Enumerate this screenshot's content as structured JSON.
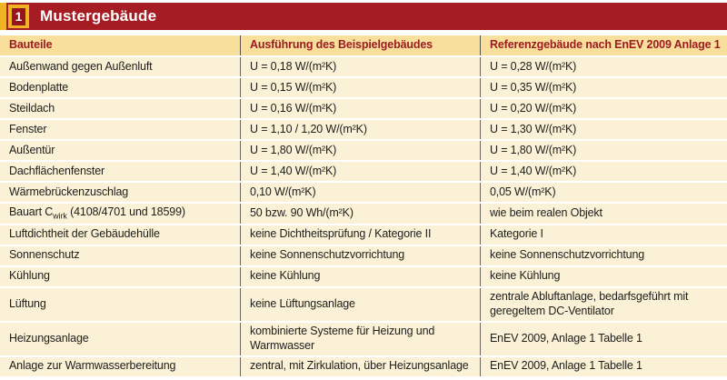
{
  "colors": {
    "bar_red": "#a51d23",
    "badge_gold": "#f0b323",
    "badge_inner_red": "#94151b",
    "header_row_bg": "#f8df9c",
    "body_row_bg": "#fbf1d6",
    "header_text": "#9c1b20",
    "separator": "#6d675c"
  },
  "header": {
    "index_badge": "1",
    "title": "Mustergebäude"
  },
  "table": {
    "columns": [
      "Bauteile",
      "Ausführung des Beispielgebäudes",
      "Referenzgebäude nach EnEV 2009 Anlage 1"
    ],
    "rows": [
      {
        "c1": "Außenwand gegen Außenluft",
        "c2": "U = 0,18 W/(m²K)",
        "c3": "U = 0,28 W/(m²K)"
      },
      {
        "c1": "Bodenplatte",
        "c2": "U = 0,15 W/(m²K)",
        "c3": "U = 0,35 W/(m²K)"
      },
      {
        "c1": "Steildach",
        "c2": "U = 0,16 W/(m²K)",
        "c3": "U = 0,20 W/(m²K)"
      },
      {
        "c1": "Fenster",
        "c2": "U = 1,10 / 1,20 W/(m²K)",
        "c3": "U = 1,30 W/(m²K)"
      },
      {
        "c1": "Außentür",
        "c2": "U = 1,80 W/(m²K)",
        "c3": "U = 1,80 W/(m²K)"
      },
      {
        "c1": "Dachflächenfenster",
        "c2": "U = 1,40 W/(m²K)",
        "c3": "U = 1,40 W/(m²K)"
      },
      {
        "c1": "Wärmebrückenzuschlag",
        "c2": "0,10 W/(m²K)",
        "c3": "0,05 W/(m²K)"
      },
      {
        "c1_prefix": "Bauart C",
        "c1_sub": "wirk",
        "c1_suffix": " (4108/4701 und 18599)",
        "c2": "50 bzw. 90 Wh/(m²K)",
        "c3": "wie beim realen Objekt"
      },
      {
        "c1": "Luftdichtheit der Gebäudehülle",
        "c2": "keine Dichtheitsprüfung / Kategorie II",
        "c3": "Kategorie I"
      },
      {
        "c1": "Sonnenschutz",
        "c2": "keine Sonnenschutzvorrichtung",
        "c3": "keine Sonnenschutzvorrichtung"
      },
      {
        "c1": "Kühlung",
        "c2": "keine Kühlung",
        "c3": "keine Kühlung"
      },
      {
        "c1": "Lüftung",
        "c2": "keine Lüftungsanlage",
        "c3": "zentrale Abluftanlage, bedarfsgeführt mit geregeltem DC-Ventilator"
      },
      {
        "c1": "Heizungsanlage",
        "c2": "kombinierte Systeme für Heizung und Warmwasser",
        "c3": "EnEV 2009, Anlage 1 Tabelle 1"
      },
      {
        "c1": "Anlage zur Warmwasserbereitung",
        "c2": "zentral, mit Zirkulation, über Heizungsanlage",
        "c3": "EnEV 2009, Anlage 1 Tabelle 1"
      }
    ]
  }
}
